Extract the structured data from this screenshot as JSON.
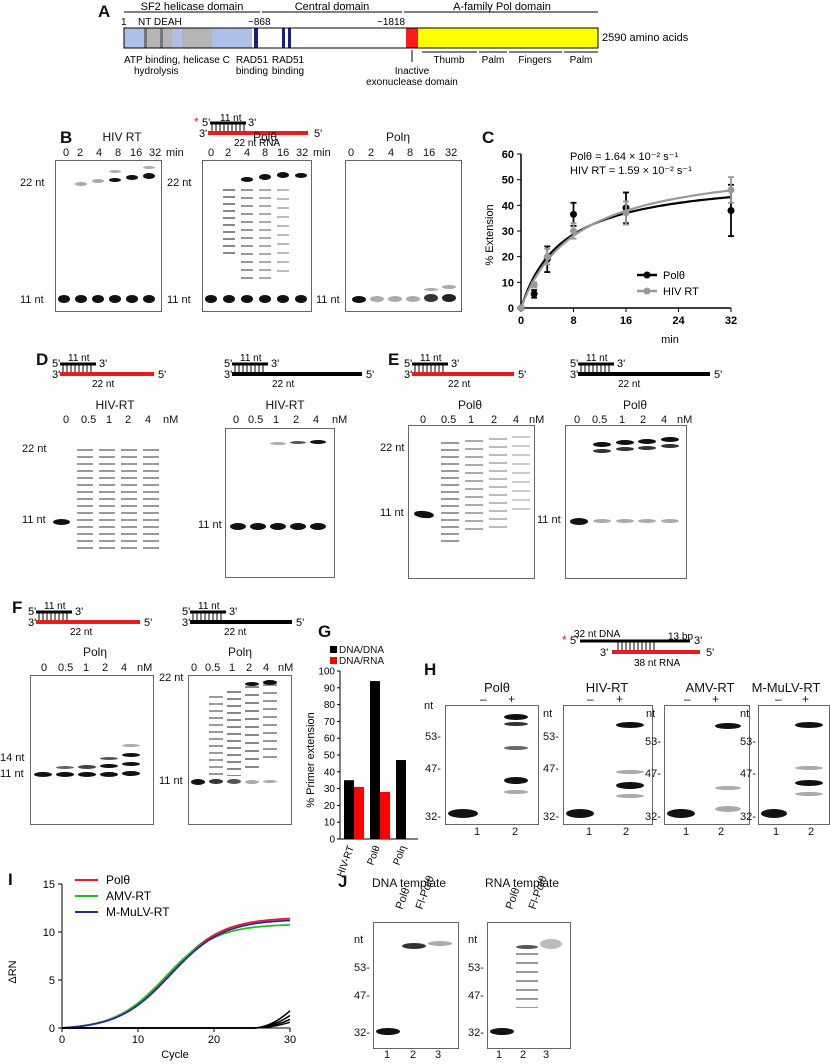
{
  "panelA": {
    "letter": "A",
    "start": "1",
    "end_label": "2590 amino acids",
    "domains": {
      "helicase": "SF2 helicase domain",
      "central": "Central domain",
      "polymerase": "A-family Pol domain"
    },
    "motifs": "NT DEAH",
    "pos868": "~868",
    "pos1818": "~1818",
    "labels": {
      "atp": "ATP binding, helicase C",
      "hydrolysis": "hydrolysis",
      "rad51a": "RAD51",
      "rad51a2": "binding",
      "rad51b": "RAD51",
      "rad51b2": "binding",
      "inactive": "Inactive",
      "exo": "exonuclease domain",
      "thumb": "Thumb",
      "palm1": "Palm",
      "fingers": "Fingers",
      "palm2": "Palm"
    },
    "colors": {
      "gray": "#b5b5b5",
      "blue": "#aebfe8",
      "darkblue": "#1b1b8c",
      "red": "#ff1a1a",
      "yellow": "#ffff00"
    }
  },
  "substrateTop": {
    "top_label": "11 nt",
    "bottom_label": "22 nt RNA",
    "p5": "5'",
    "p3": "3'",
    "star": "*"
  },
  "panelB": {
    "letter": "B",
    "gels": [
      {
        "title": "HIV RT",
        "lanes": [
          "0",
          "2",
          "4",
          "8",
          "16",
          "32"
        ],
        "unit": "min",
        "m22": "22 nt",
        "m11": "11 nt"
      },
      {
        "title": "Polθ",
        "lanes": [
          "0",
          "2",
          "4",
          "8",
          "16",
          "32"
        ],
        "unit": "min",
        "m22": "22 nt",
        "m11": "11 nt"
      },
      {
        "title": "Polη",
        "lanes": [
          "0",
          "2",
          "4",
          "8",
          "16",
          "32"
        ],
        "unit": "min",
        "m11": "11 nt"
      }
    ]
  },
  "panelC": {
    "letter": "C",
    "eq1": "Polθ = 1.64 × 10⁻² s⁻¹",
    "eq2": "HIV RT = 1.59 × 10⁻² s⁻¹",
    "ylabel": "% Extension",
    "xlabel": "min",
    "legend": [
      "Polθ",
      "HIV RT"
    ]
  },
  "chart_data": [
    {
      "type": "scatter",
      "title": "",
      "xlabel": "min",
      "ylabel": "% Extension",
      "xlim": [
        0,
        32
      ],
      "ylim": [
        0,
        60
      ],
      "xticks": [
        "0",
        "8",
        "16",
        "24",
        "32"
      ],
      "yticks": [
        "0",
        "10",
        "20",
        "30",
        "40",
        "50",
        "60"
      ],
      "legend_position": "bottom-right",
      "series": [
        {
          "name": "Polθ",
          "color": "#000000",
          "x": [
            0,
            2,
            4,
            8,
            16,
            32
          ],
          "y": [
            0,
            5.5,
            19,
            36.5,
            39,
            38
          ],
          "err": [
            0,
            1.5,
            5,
            4.5,
            6,
            10
          ]
        },
        {
          "name": "HIV RT",
          "color": "#999999",
          "x": [
            0,
            2,
            4,
            8,
            16,
            32
          ],
          "y": [
            0,
            9,
            20,
            30,
            37,
            46
          ],
          "err": [
            0,
            1,
            3,
            3,
            4.5,
            5
          ]
        }
      ]
    },
    {
      "type": "bar",
      "title": "",
      "ylabel": "% Primer extension",
      "ylim": [
        0,
        100
      ],
      "yticks": [
        "0",
        "10",
        "20",
        "30",
        "40",
        "50",
        "60",
        "70",
        "80",
        "90",
        "100"
      ],
      "categories": [
        "HIV-RT",
        "Polθ",
        "Polη"
      ],
      "legend_position": "top-left",
      "series": [
        {
          "name": "DNA/DNA",
          "color": "#000000",
          "values": [
            35,
            94,
            47
          ]
        },
        {
          "name": "DNA/RNA",
          "color": "#ff0000",
          "values": [
            31,
            28,
            0
          ]
        }
      ]
    },
    {
      "type": "line",
      "title": "",
      "xlabel": "Cycle",
      "ylabel": "ΔRN",
      "xlim": [
        0,
        30
      ],
      "ylim": [
        0,
        15
      ],
      "xticks": [
        "0",
        "10",
        "20",
        "30"
      ],
      "yticks": [
        "0",
        "5",
        "10",
        "15"
      ],
      "legend_position": "top-left",
      "series": [
        {
          "name": "Polθ",
          "color": "#e8192c"
        },
        {
          "name": "AMV-RT",
          "color": "#22c01e"
        },
        {
          "name": "M-MuLV-RT",
          "color": "#2a2a9c"
        }
      ]
    }
  ],
  "panelD": {
    "letter": "D",
    "gels": [
      {
        "title": "HIV-RT",
        "lanes": [
          "0",
          "0.5",
          "1",
          "2",
          "4"
        ],
        "unit": "nM",
        "m22": "22 nt",
        "m11": "11 nt",
        "top": "11 nt",
        "bottom": "22 nt"
      },
      {
        "title": "HIV-RT",
        "lanes": [
          "0",
          "0.5",
          "1",
          "2",
          "4"
        ],
        "unit": "nM",
        "m11": "11 nt",
        "top": "11 nt",
        "bottom": "22 nt"
      }
    ]
  },
  "panelE": {
    "letter": "E",
    "gels": [
      {
        "title": "Polθ",
        "lanes": [
          "0",
          "0.5",
          "1",
          "2",
          "4"
        ],
        "unit": "nM",
        "m22": "22 nt",
        "m11": "11 nt",
        "top": "11 nt",
        "bottom": "22 nt"
      },
      {
        "title": "Polθ",
        "lanes": [
          "0",
          "0.5",
          "1",
          "2",
          "4"
        ],
        "unit": "nM",
        "m11": "11 nt",
        "top": "11 nt",
        "bottom": "22 nt"
      }
    ]
  },
  "panelF": {
    "letter": "F",
    "gels": [
      {
        "title": "Polη",
        "lanes": [
          "0",
          "0.5",
          "1",
          "2",
          "4"
        ],
        "unit": "nM",
        "m14": "14 nt",
        "m11": "11 nt",
        "top": "11 nt",
        "bottom": "22 nt"
      },
      {
        "title": "Polη",
        "lanes": [
          "0",
          "0.5",
          "1",
          "2",
          "4"
        ],
        "unit": "nM",
        "m22": "22 nt",
        "m11": "11 nt",
        "top": "11 nt",
        "bottom": "22 nt"
      }
    ]
  },
  "panelG": {
    "letter": "G",
    "legend": [
      "DNA/DNA",
      "DNA/RNA"
    ],
    "ylabel": "% Primer extension"
  },
  "panelH": {
    "letter": "H",
    "substrate": {
      "dna": "32 nt DNA",
      "bp": "13 bp",
      "rna": "38 nt RNA"
    },
    "gels": [
      {
        "title": "Polθ",
        "minus": "–",
        "plus": "+",
        "lanes": [
          "1",
          "2"
        ],
        "nt": "nt",
        "m32": "32-"
      },
      {
        "title": "HIV-RT",
        "minus": "–",
        "plus": "+",
        "lanes": [
          "1",
          "2"
        ],
        "nt": "nt",
        "m53": "53-",
        "m47": "47-",
        "m32": "32-"
      },
      {
        "title": "AMV-RT",
        "minus": "–",
        "plus": "+",
        "lanes": [
          "1",
          "2"
        ],
        "nt": "nt",
        "m53": "53-",
        "m47": "47-",
        "m32": "32-"
      },
      {
        "title": "M-MuLV-RT",
        "minus": "–",
        "plus": "+",
        "lanes": [
          "1",
          "2"
        ],
        "nt": "nt",
        "m53": "53-",
        "m47": "47-",
        "m32": "32-"
      }
    ],
    "firstMarkers": {
      "m53": "53-",
      "m47": "47-"
    }
  },
  "panelI": {
    "letter": "I",
    "ylabel": "ΔRN",
    "xlabel": "Cycle",
    "legend": [
      "Polθ",
      "AMV-RT",
      "M-MuLV-RT"
    ]
  },
  "panelJ": {
    "letter": "J",
    "gels": [
      {
        "title": "DNA template",
        "lanes": [
          "Polθ",
          "Fl-Polθ"
        ],
        "nums": [
          "1",
          "2",
          "3"
        ],
        "nt": "nt",
        "m53": "53-",
        "m47": "47-",
        "m32": "32-"
      },
      {
        "title": "RNA template",
        "lanes": [
          "Polθ",
          "Fl-Polθ"
        ],
        "nums": [
          "1",
          "2",
          "3"
        ],
        "nt": "nt",
        "m53": "53-",
        "m47": "47-",
        "m32": "32-"
      }
    ]
  }
}
